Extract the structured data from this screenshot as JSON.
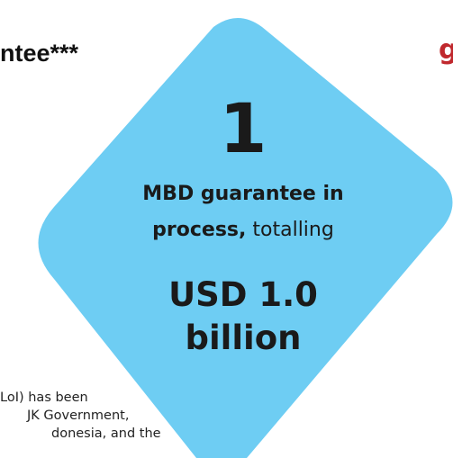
{
  "background": {
    "heading_fragment": "ntee***",
    "logo_fragment": "g",
    "paragraph_lines": [
      "LoI) has been",
      "JK Government,",
      "donesia, and the"
    ]
  },
  "card": {
    "count": "1",
    "desc_bold_1": "MBD guarantee in",
    "desc_bold_2": "process,",
    "desc_regular": " totalling",
    "amount_line_1": "USD 1.0",
    "amount_line_2": "billion",
    "fill_color": "#6ecdf3"
  },
  "colors": {
    "text": "#1a1a1a",
    "logo": "#c0282d"
  }
}
